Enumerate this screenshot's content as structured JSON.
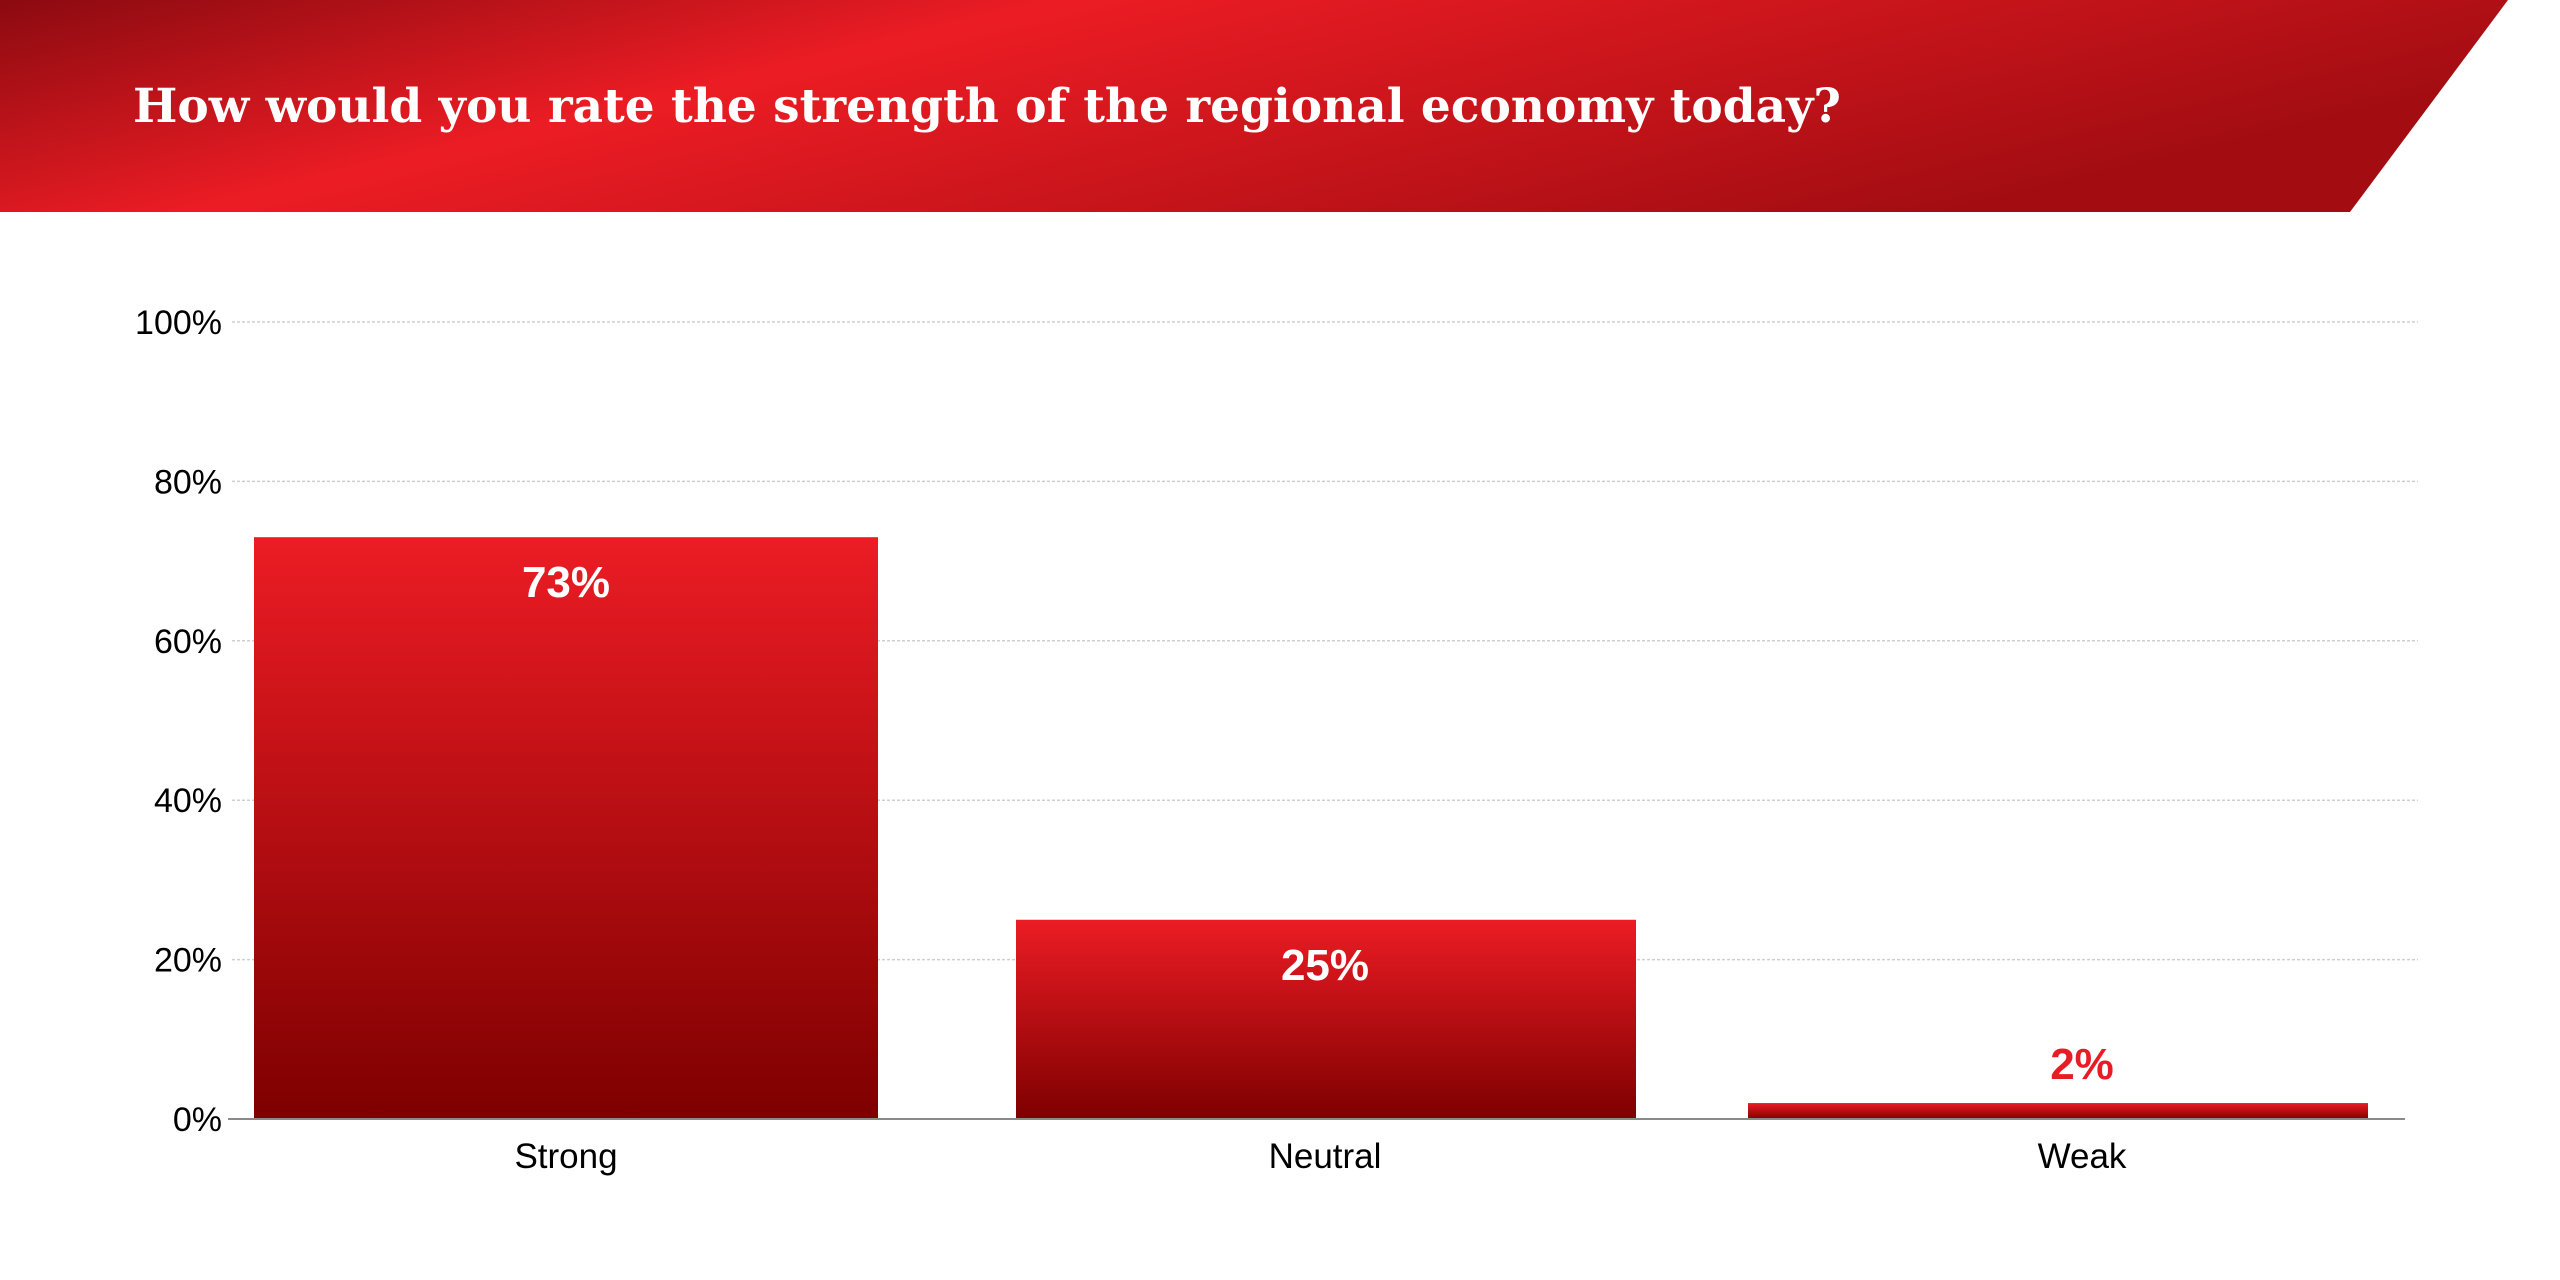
{
  "chart_data": {
    "type": "bar",
    "title": "How would you rate the strength of the regional economy today?",
    "xlabel": "",
    "ylabel": "",
    "categories": [
      "Strong",
      "Neutral",
      "Weak"
    ],
    "values": [
      73,
      25,
      2
    ],
    "data_labels": [
      "73%",
      "25%",
      "2%"
    ],
    "ylim": [
      0,
      100
    ],
    "yticks": [
      0,
      20,
      40,
      60,
      80,
      100
    ],
    "ytick_labels": [
      "0%",
      "20%",
      "40%",
      "60%",
      "80%",
      "100%"
    ],
    "grid": true,
    "legend": "none"
  },
  "colors": {
    "accent": "#e81c24",
    "dark_red": "#7e0000",
    "header_dark": "#8b0a10",
    "tick_text": "#000000",
    "grid": "#cfcfcf",
    "data_label_inside": "#ffffff",
    "data_label_outside": "#e81c24"
  }
}
